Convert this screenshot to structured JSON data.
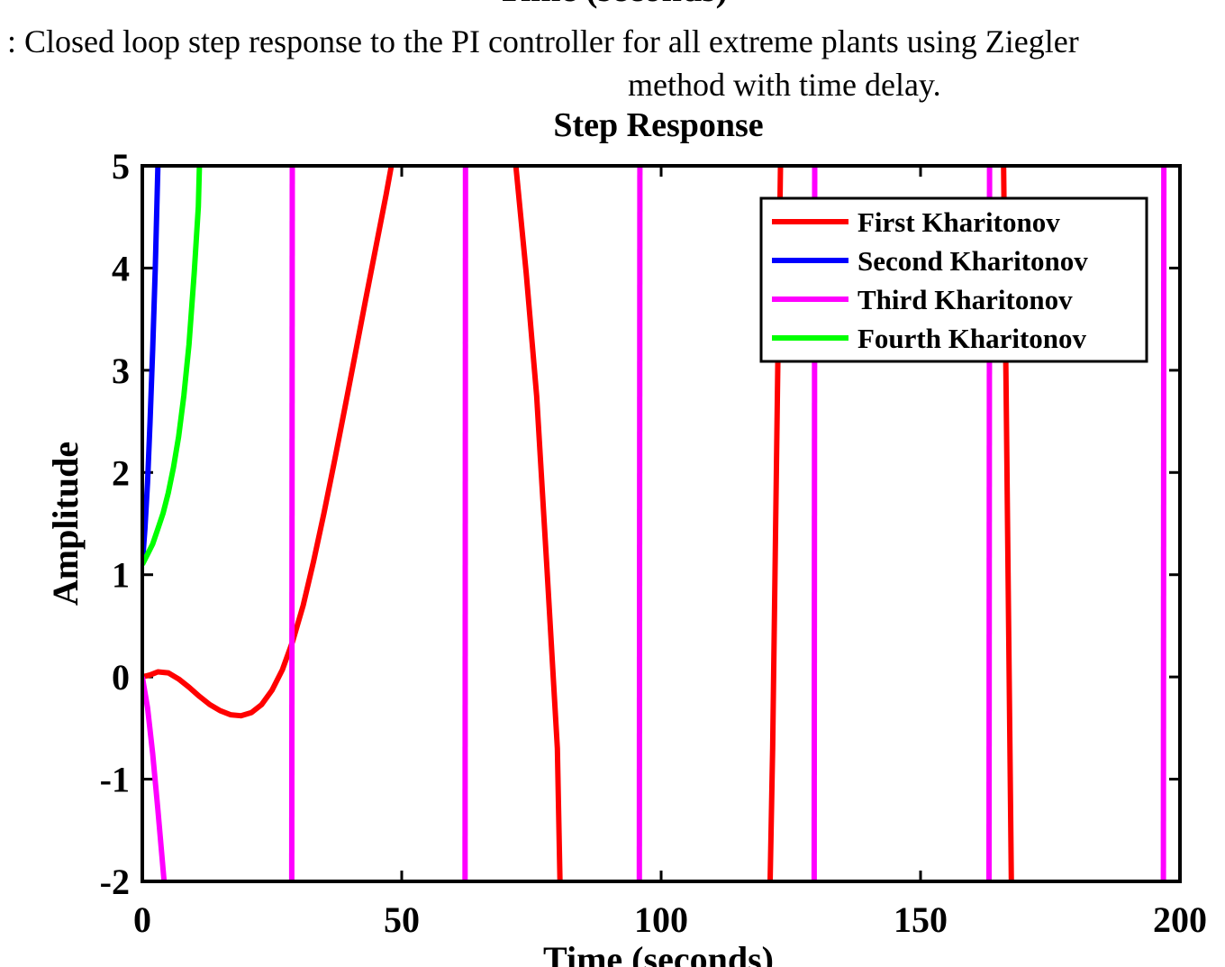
{
  "figure": {
    "top_cut_label": "Time (seconds)",
    "caption_line1": ": Closed loop step response to the PI controller for all extreme plants using Ziegler",
    "caption_line2": "method with time delay."
  },
  "chart_data": {
    "type": "line",
    "title": "Step Response",
    "xlabel": "Time (seconds)",
    "ylabel": "Amplitude",
    "xlim": [
      0,
      200
    ],
    "ylim": [
      -2,
      5
    ],
    "xticks": [
      0,
      50,
      100,
      150,
      200
    ],
    "yticks": [
      -2,
      -1,
      0,
      1,
      2,
      3,
      4,
      5
    ],
    "grid": false,
    "legend_position": "top-right",
    "series": [
      {
        "name": "First Kharitonov",
        "color": "#ff0000",
        "segments": [
          [
            [
              0,
              0
            ],
            [
              1.5,
              0.02
            ],
            [
              3,
              0.05
            ],
            [
              5,
              0.04
            ],
            [
              7,
              -0.02
            ],
            [
              9,
              -0.1
            ],
            [
              11,
              -0.19
            ],
            [
              13,
              -0.27
            ],
            [
              15,
              -0.33
            ],
            [
              17,
              -0.37
            ],
            [
              19,
              -0.38
            ],
            [
              21,
              -0.35
            ],
            [
              23,
              -0.27
            ],
            [
              25,
              -0.13
            ],
            [
              27,
              0.07
            ],
            [
              29,
              0.35
            ],
            [
              31,
              0.7
            ],
            [
              33,
              1.13
            ],
            [
              35,
              1.6
            ],
            [
              37,
              2.1
            ],
            [
              39,
              2.62
            ],
            [
              41,
              3.15
            ],
            [
              43,
              3.68
            ],
            [
              45,
              4.2
            ],
            [
              47,
              4.72
            ],
            [
              48,
              5
            ]
          ],
          [
            [
              72,
              5
            ],
            [
              74,
              3.95
            ],
            [
              76,
              2.75
            ],
            [
              78,
              1.05
            ],
            [
              80,
              -0.7
            ],
            [
              80.5,
              -2
            ]
          ],
          [
            [
              121,
              -2
            ],
            [
              121.5,
              -0.7
            ],
            [
              122,
              1.2
            ],
            [
              122.5,
              3.1
            ],
            [
              123,
              5
            ]
          ],
          [
            [
              166,
              5
            ],
            [
              166.5,
              2.8
            ],
            [
              167,
              0.4
            ],
            [
              167.5,
              -2
            ]
          ]
        ]
      },
      {
        "name": "Second Kharitonov",
        "color": "#0000ff",
        "segments": [
          [
            [
              0,
              1.1
            ],
            [
              0.5,
              1.45
            ],
            [
              1,
              1.9
            ],
            [
              1.5,
              2.5
            ],
            [
              2,
              3.2
            ],
            [
              2.5,
              4.0
            ],
            [
              3,
              5
            ]
          ]
        ]
      },
      {
        "name": "Third Kharitonov",
        "color": "#ff00ff",
        "segments": [
          [
            [
              0,
              0
            ],
            [
              1,
              -0.3
            ],
            [
              2,
              -0.75
            ],
            [
              3,
              -1.3
            ],
            [
              4.2,
              -2
            ]
          ],
          [
            [
              28.8,
              -2
            ],
            [
              28.9,
              5
            ]
          ],
          [
            [
              62.2,
              -2
            ],
            [
              62.3,
              5
            ]
          ],
          [
            [
              95.8,
              -2
            ],
            [
              95.9,
              5
            ]
          ],
          [
            [
              129.5,
              -2
            ],
            [
              129.6,
              5
            ]
          ],
          [
            [
              163.2,
              -2
            ],
            [
              163.3,
              5
            ]
          ],
          [
            [
              196.8,
              -2
            ],
            [
              196.9,
              5
            ]
          ]
        ]
      },
      {
        "name": "Fourth Kharitonov",
        "color": "#00ff00",
        "segments": [
          [
            [
              0,
              1.1
            ],
            [
              1,
              1.2
            ],
            [
              2,
              1.3
            ],
            [
              3,
              1.45
            ],
            [
              4,
              1.6
            ],
            [
              5,
              1.8
            ],
            [
              6,
              2.05
            ],
            [
              7,
              2.35
            ],
            [
              8,
              2.75
            ],
            [
              9,
              3.25
            ],
            [
              10,
              3.95
            ],
            [
              10.8,
              4.6
            ],
            [
              11,
              5
            ]
          ]
        ]
      }
    ]
  }
}
